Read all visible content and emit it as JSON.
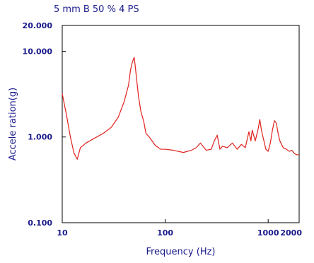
{
  "chart_data": {
    "type": "line",
    "title": "5 mm B 50 % 4 PS",
    "xlabel": "Frequency (Hz)",
    "ylabel": "Accele ration(g)",
    "x_scale": "log",
    "y_scale": "log",
    "xlim": [
      10,
      2000
    ],
    "ylim": [
      0.1,
      20
    ],
    "x_ticks": [
      "10",
      "100",
      "1000",
      "2000"
    ],
    "y_ticks": [
      "0.100",
      "1.000",
      "10.000",
      "20.000"
    ],
    "grid": false,
    "line_color": "#e0201c",
    "series": [
      {
        "x": [
          10,
          11,
          12,
          13,
          14,
          15,
          17,
          20,
          25,
          30,
          35,
          40,
          44,
          46,
          48,
          50,
          51,
          53,
          55,
          58,
          62,
          65,
          70,
          80,
          90,
          100,
          120,
          150,
          180,
          200,
          220,
          250,
          280,
          300,
          320,
          340,
          360,
          400,
          450,
          500,
          550,
          600,
          650,
          680,
          700,
          750,
          800,
          830,
          860,
          900,
          950,
          1000,
          1050,
          1100,
          1150,
          1200,
          1250,
          1300,
          1400,
          1500,
          1600,
          1700,
          1800,
          1900,
          2000
        ],
        "y": [
          3.2,
          1.8,
          1.0,
          0.65,
          0.55,
          0.75,
          0.85,
          0.95,
          1.1,
          1.3,
          1.7,
          2.6,
          4.0,
          6.0,
          7.5,
          8.5,
          7.0,
          4.5,
          3.0,
          2.0,
          1.5,
          1.1,
          1.0,
          0.8,
          0.72,
          0.72,
          0.7,
          0.66,
          0.7,
          0.75,
          0.85,
          0.7,
          0.72,
          0.9,
          1.05,
          0.72,
          0.78,
          0.75,
          0.85,
          0.72,
          0.82,
          0.75,
          1.15,
          0.9,
          1.2,
          0.9,
          1.25,
          1.6,
          1.2,
          0.95,
          0.72,
          0.68,
          0.85,
          1.2,
          1.55,
          1.45,
          1.1,
          0.9,
          0.75,
          0.72,
          0.68,
          0.7,
          0.64,
          0.62,
          0.62
        ]
      }
    ]
  }
}
